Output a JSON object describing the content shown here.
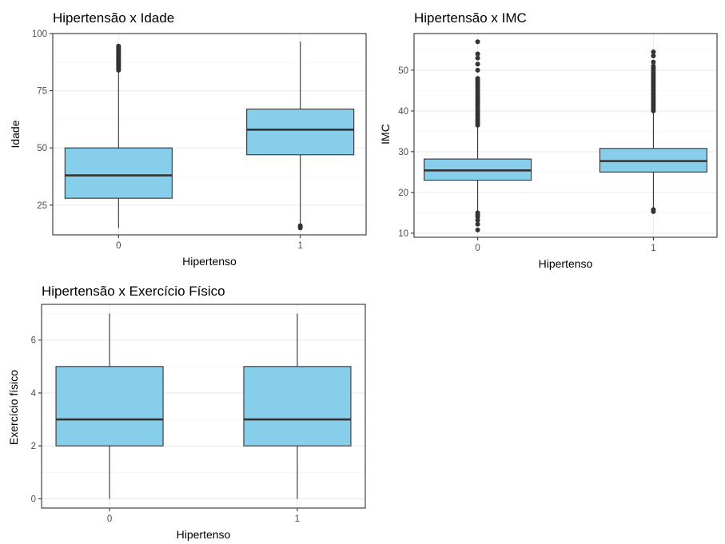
{
  "colors": {
    "box_fill": "#87CEEB",
    "box_stroke": "#333333"
  },
  "chart_data": [
    {
      "type": "boxplot",
      "title": "Hipertensão x Idade",
      "xlabel": "Hipertenso",
      "ylabel": "Idade",
      "categories": [
        "0",
        "1"
      ],
      "ylim": [
        12,
        100
      ],
      "yticks": [
        25,
        50,
        75,
        100
      ],
      "yticklabels": [
        "25",
        "50",
        "75",
        "100"
      ],
      "grid": true,
      "boxes": [
        {
          "category": "0",
          "lower_whisker": 15,
          "q1": 28,
          "median": 38,
          "q3": 50,
          "upper_whisker": 83,
          "outliers": [
            84,
            84.5,
            85,
            85.5,
            86,
            86.5,
            87,
            87.5,
            88,
            88.5,
            89,
            89.5,
            90,
            90.5,
            91,
            91.5,
            92,
            92.5,
            93,
            93.5,
            94,
            94.5
          ]
        },
        {
          "category": "1",
          "lower_whisker": 17,
          "q1": 47,
          "median": 58,
          "q3": 67,
          "upper_whisker": 96.5,
          "outliers": [
            15,
            15.5,
            16
          ]
        }
      ]
    },
    {
      "type": "boxplot",
      "title": "Hipertensão x IMC",
      "xlabel": "Hipertenso",
      "ylabel": "IMC",
      "categories": [
        "0",
        "1"
      ],
      "ylim": [
        9,
        59
      ],
      "yticks": [
        10,
        20,
        30,
        40,
        50
      ],
      "yticklabels": [
        "10",
        "20",
        "30",
        "40",
        "50"
      ],
      "grid": true,
      "boxes": [
        {
          "category": "0",
          "lower_whisker": 15.5,
          "q1": 23,
          "median": 25.4,
          "q3": 28.2,
          "upper_whisker": 36,
          "outliers": [
            10.8,
            12.2,
            13.2,
            14,
            14.5,
            15,
            36.5,
            37,
            37.5,
            38,
            38.5,
            39,
            39.5,
            40,
            40.5,
            41,
            41.5,
            42,
            42.5,
            43,
            43.5,
            44,
            44.5,
            45,
            45.5,
            46,
            46.5,
            47,
            47.5,
            48,
            50,
            51.5,
            53,
            54,
            57
          ]
        },
        {
          "category": "1",
          "lower_whisker": 16.2,
          "q1": 25,
          "median": 27.7,
          "q3": 30.8,
          "upper_whisker": 39.5,
          "outliers": [
            15.3,
            15.8,
            40,
            40.5,
            41,
            41.5,
            42,
            42.5,
            43,
            43.5,
            44,
            44.5,
            45,
            45.5,
            46,
            46.5,
            47,
            47.5,
            48,
            48.5,
            49,
            49.5,
            50,
            50.5,
            51,
            52,
            53.5,
            54.5
          ]
        }
      ]
    },
    {
      "type": "boxplot",
      "title": "Hipertensão x Exercício Físico",
      "xlabel": "Hipertenso",
      "ylabel": "Exercício físico",
      "categories": [
        "0",
        "1"
      ],
      "ylim": [
        -0.35,
        7.35
      ],
      "yticks": [
        0,
        2,
        4,
        6
      ],
      "yticklabels": [
        "0",
        "2",
        "4",
        "6"
      ],
      "grid": true,
      "boxes": [
        {
          "category": "0",
          "lower_whisker": 0,
          "q1": 2,
          "median": 3,
          "q3": 5,
          "upper_whisker": 7,
          "outliers": []
        },
        {
          "category": "1",
          "lower_whisker": 0,
          "q1": 2,
          "median": 3,
          "q3": 5,
          "upper_whisker": 7,
          "outliers": []
        }
      ]
    }
  ]
}
